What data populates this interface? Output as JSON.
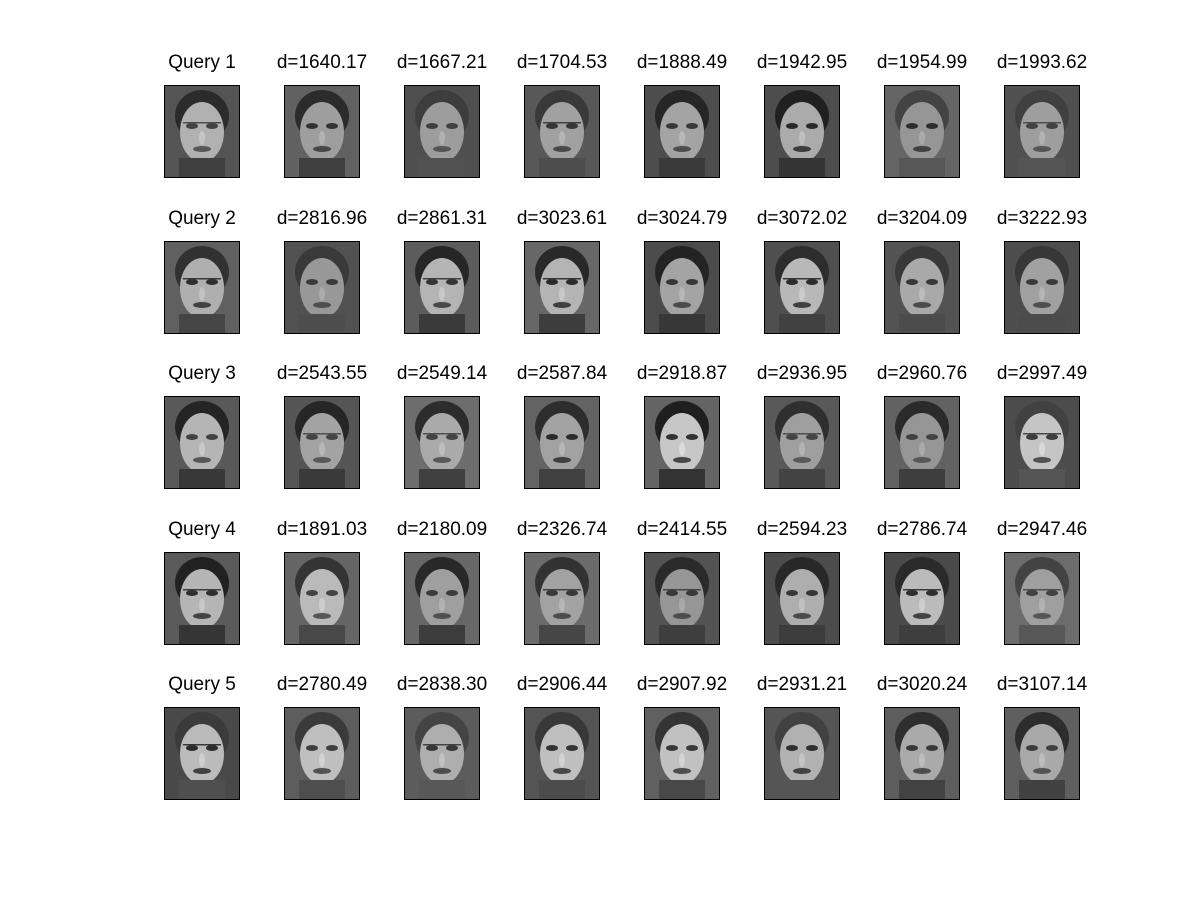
{
  "figure": {
    "rows": [
      {
        "query_label": "Query 1",
        "matches": [
          "d=1640.17",
          "d=1667.21",
          "d=1704.53",
          "d=1888.49",
          "d=1942.95",
          "d=1954.99",
          "d=1993.62"
        ]
      },
      {
        "query_label": "Query 2",
        "matches": [
          "d=2816.96",
          "d=2861.31",
          "d=3023.61",
          "d=3024.79",
          "d=3072.02",
          "d=3204.09",
          "d=3222.93"
        ]
      },
      {
        "query_label": "Query 3",
        "matches": [
          "d=2543.55",
          "d=2549.14",
          "d=2587.84",
          "d=2918.87",
          "d=2936.95",
          "d=2960.76",
          "d=2997.49"
        ]
      },
      {
        "query_label": "Query 4",
        "matches": [
          "d=1891.03",
          "d=2180.09",
          "d=2326.74",
          "d=2414.55",
          "d=2594.23",
          "d=2786.74",
          "d=2947.46"
        ]
      },
      {
        "query_label": "Query 5",
        "matches": [
          "d=2780.49",
          "d=2838.30",
          "d=2906.44",
          "d=2907.92",
          "d=2931.21",
          "d=3020.24",
          "d=3107.14"
        ]
      }
    ]
  }
}
